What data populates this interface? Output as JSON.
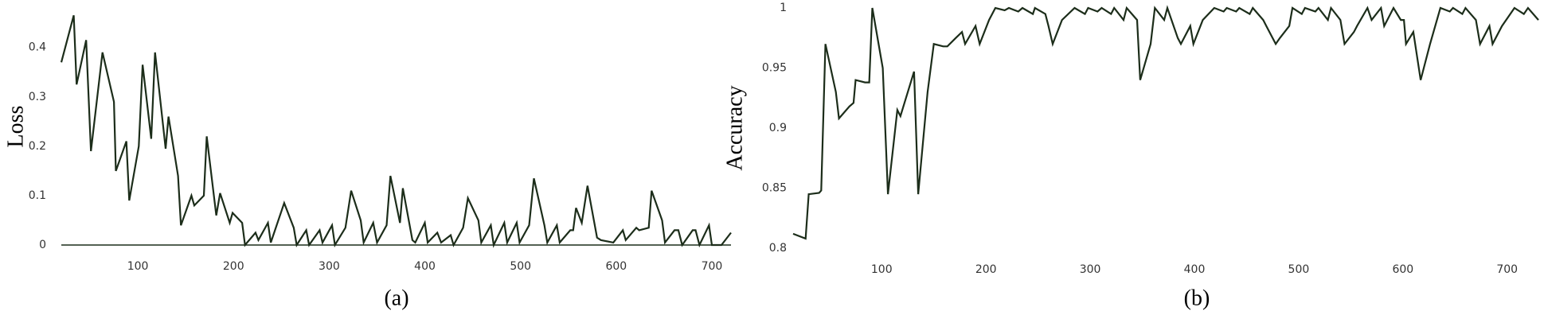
{
  "chart_data": [
    {
      "type": "line",
      "ylabel": "Loss",
      "caption": "(a)",
      "color": "#1c2d1a",
      "x_axis_line": true,
      "xlim": [
        20,
        720
      ],
      "ylim": [
        0,
        0.48
      ],
      "xticks": [
        100,
        200,
        300,
        400,
        500,
        600,
        700
      ],
      "yticks": [
        0,
        0.1,
        0.2,
        0.3,
        0.4
      ],
      "x": [
        20,
        33,
        36,
        46,
        51,
        63,
        75,
        77,
        88,
        91,
        101,
        105,
        114,
        118,
        129,
        132,
        142,
        145,
        156,
        159,
        169,
        172,
        182,
        186,
        196,
        199,
        209,
        212,
        223,
        226,
        236,
        239,
        253,
        263,
        266,
        276,
        279,
        290,
        293,
        303,
        306,
        317,
        323,
        333,
        336,
        346,
        350,
        360,
        364,
        374,
        377,
        387,
        390,
        400,
        403,
        413,
        417,
        427,
        430,
        440,
        445,
        456,
        459,
        469,
        472,
        483,
        486,
        496,
        499,
        509,
        514,
        525,
        528,
        538,
        541,
        552,
        555,
        558,
        564,
        570,
        580,
        584,
        597,
        607,
        610,
        621,
        624,
        634,
        637,
        648,
        651,
        661,
        665,
        669,
        680,
        683,
        687,
        697,
        700,
        710,
        720
      ],
      "values": [
        0.37,
        0.465,
        0.325,
        0.415,
        0.19,
        0.39,
        0.29,
        0.15,
        0.21,
        0.09,
        0.2,
        0.365,
        0.215,
        0.39,
        0.195,
        0.26,
        0.14,
        0.04,
        0.1,
        0.08,
        0.1,
        0.22,
        0.06,
        0.105,
        0.045,
        0.065,
        0.045,
        0,
        0.025,
        0.01,
        0.045,
        0.005,
        0.085,
        0.035,
        0,
        0.03,
        0,
        0.03,
        0.005,
        0.04,
        0,
        0.035,
        0.11,
        0.05,
        0.005,
        0.045,
        0.005,
        0.04,
        0.14,
        0.045,
        0.115,
        0.01,
        0.005,
        0.045,
        0.005,
        0.025,
        0.005,
        0.02,
        0,
        0.035,
        0.095,
        0.05,
        0.005,
        0.04,
        0,
        0.045,
        0.005,
        0.045,
        0.005,
        0.04,
        0.135,
        0.04,
        0.005,
        0.04,
        0.005,
        0.03,
        0.03,
        0.075,
        0.045,
        0.12,
        0.015,
        0.01,
        0.005,
        0.03,
        0.01,
        0.035,
        0.03,
        0.035,
        0.11,
        0.05,
        0.005,
        0.03,
        0.03,
        0,
        0.03,
        0.03,
        0,
        0.04,
        0,
        0,
        0.025
      ]
    },
    {
      "type": "line",
      "ylabel": "Accuracy",
      "caption": "(b)",
      "color": "#1c2d1a",
      "x_axis_line": false,
      "xlim": [
        15,
        730
      ],
      "ylim": [
        0.8,
        1
      ],
      "xticks": [
        100,
        200,
        300,
        400,
        500,
        600,
        700
      ],
      "yticks": [
        0.8,
        0.85,
        0.9,
        0.95,
        1
      ],
      "x": [
        15,
        27,
        30,
        40,
        42,
        46,
        56,
        59,
        69,
        73,
        75,
        84,
        88,
        91,
        101,
        106,
        115,
        118,
        131,
        135,
        144,
        150,
        159,
        163,
        171,
        177,
        180,
        190,
        194,
        203,
        209,
        218,
        222,
        231,
        235,
        245,
        247,
        257,
        260,
        264,
        273,
        285,
        295,
        298,
        307,
        311,
        320,
        323,
        332,
        335,
        345,
        348,
        358,
        362,
        371,
        374,
        384,
        387,
        396,
        399,
        408,
        419,
        428,
        431,
        440,
        443,
        453,
        456,
        466,
        469,
        478,
        482,
        491,
        494,
        503,
        506,
        516,
        519,
        528,
        531,
        540,
        544,
        553,
        556,
        566,
        570,
        579,
        582,
        591,
        598,
        601,
        603,
        610,
        617,
        626,
        636,
        645,
        648,
        657,
        660,
        670,
        674,
        683,
        686,
        695,
        707,
        716,
        720,
        730
      ],
      "values": [
        0.812,
        0.808,
        0.845,
        0.846,
        0.848,
        0.97,
        0.93,
        0.908,
        0.918,
        0.921,
        0.94,
        0.938,
        0.938,
        1,
        0.95,
        0.845,
        0.915,
        0.91,
        0.947,
        0.845,
        0.93,
        0.97,
        0.968,
        0.968,
        0.975,
        0.98,
        0.97,
        0.985,
        0.97,
        0.99,
        1,
        0.998,
        1,
        0.997,
        1,
        0.995,
        1,
        0.995,
        0.985,
        0.97,
        0.99,
        1,
        0.995,
        1,
        0.997,
        1,
        0.995,
        1,
        0.99,
        1,
        0.99,
        0.94,
        0.97,
        1,
        0.99,
        1,
        0.975,
        0.97,
        0.985,
        0.97,
        0.99,
        1,
        0.997,
        1,
        0.997,
        1,
        0.995,
        1,
        0.99,
        0.985,
        0.97,
        0.975,
        0.985,
        1,
        0.995,
        1,
        0.997,
        1,
        0.99,
        1,
        0.99,
        0.97,
        0.98,
        0.985,
        1,
        0.99,
        1,
        0.985,
        1,
        0.99,
        0.99,
        0.97,
        0.98,
        0.94,
        0.97,
        1,
        0.997,
        1,
        0.995,
        1,
        0.99,
        0.97,
        0.985,
        0.97,
        0.985,
        1,
        0.995,
        1,
        0.99
      ]
    }
  ]
}
